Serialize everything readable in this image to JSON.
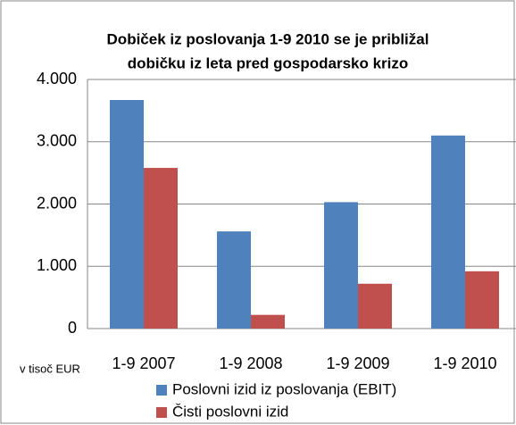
{
  "chart_data": {
    "type": "bar",
    "title": [
      "Dobiček iz poslovanja 1-9 2010 se je približal",
      "dobičku iz leta pred gospodarsko krizo"
    ],
    "annotation": "v tisoč EUR",
    "categories": [
      "1-9 2007",
      "1-9 2008",
      "1-9 2009",
      "1-9 2010"
    ],
    "series": [
      {
        "name": "Poslovni izid iz poslovanja (EBIT)",
        "color": "#4f81bd",
        "values": [
          3670,
          1560,
          2030,
          3100
        ]
      },
      {
        "name": "Čisti poslovni izid",
        "color": "#c0504d",
        "values": [
          2580,
          220,
          720,
          920
        ]
      }
    ],
    "ylim": [
      0,
      4000
    ],
    "yticks": [
      0,
      {
        "value": 1000,
        "label": "1.000"
      },
      {
        "value": 2000,
        "label": "2.000"
      },
      {
        "value": 3000,
        "label": "3.000"
      },
      {
        "value": 4000,
        "label": "4.000"
      }
    ],
    "grid": true
  }
}
